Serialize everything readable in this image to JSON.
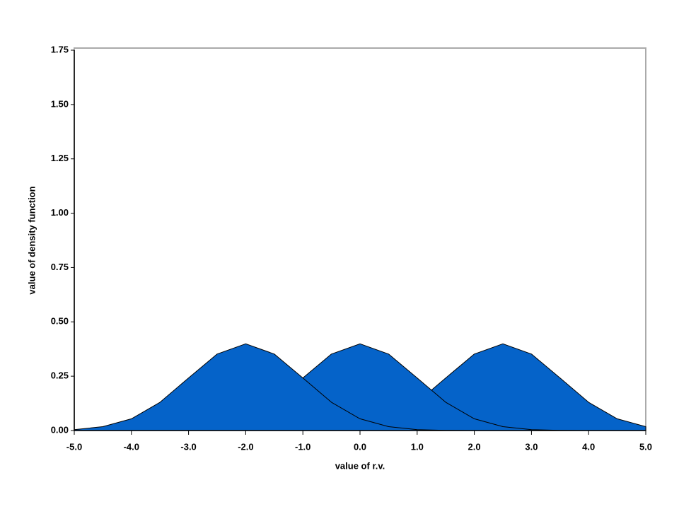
{
  "chart_data": {
    "type": "area",
    "x_label": "value of r.v.",
    "y_label": "value of density function",
    "x": [
      -5,
      -4.5,
      -4,
      -3.5,
      -3,
      -2.5,
      -2,
      -1.5,
      -1,
      -0.5,
      0,
      0.5,
      1,
      1.5,
      2,
      2.5,
      3,
      3.5,
      4,
      4.5,
      5
    ],
    "series": [
      {
        "color": "#0563c9",
        "values": [
          0.004,
          0.018,
          0.054,
          0.13,
          0.242,
          0.352,
          0.399,
          0.352,
          0.242,
          0.13,
          0.054,
          0.018,
          0.004,
          0.001,
          0,
          0,
          0,
          0,
          0,
          0,
          0
        ]
      },
      {
        "color": "#0563c9",
        "values": [
          0,
          0,
          0,
          0.001,
          0.004,
          0.018,
          0.054,
          0.13,
          0.242,
          0.352,
          0.399,
          0.352,
          0.242,
          0.13,
          0.054,
          0.018,
          0.004,
          0.001,
          0,
          0,
          0
        ]
      },
      {
        "color": "#0563c9",
        "values": [
          0,
          0,
          0,
          0,
          0,
          0,
          0,
          0,
          0.001,
          0.004,
          0.018,
          0.054,
          0.13,
          0.242,
          0.352,
          0.399,
          0.352,
          0.242,
          0.13,
          0.054,
          0.018
        ]
      }
    ],
    "xlim": [
      -5,
      5
    ],
    "ylim": [
      0,
      1.75
    ],
    "xticks": [
      {
        "value": -5,
        "label": "-5.0"
      },
      {
        "value": -4,
        "label": "-4.0"
      },
      {
        "value": -3,
        "label": "-3.0"
      },
      {
        "value": -2,
        "label": "-2.0"
      },
      {
        "value": -1,
        "label": "-1.0"
      },
      {
        "value": 0,
        "label": "0.0"
      },
      {
        "value": 1,
        "label": "1.0"
      },
      {
        "value": 2,
        "label": "2.0"
      },
      {
        "value": 3,
        "label": "3.0"
      },
      {
        "value": 4,
        "label": "4.0"
      },
      {
        "value": 5,
        "label": "5.0"
      }
    ],
    "yticks": [
      {
        "value": 0,
        "label": "0.00"
      },
      {
        "value": 0.25,
        "label": "0.25"
      },
      {
        "value": 0.5,
        "label": "0.50"
      },
      {
        "value": 0.75,
        "label": "0.75"
      },
      {
        "value": 1,
        "label": "1.00"
      },
      {
        "value": 1.25,
        "label": "1.25"
      },
      {
        "value": 1.5,
        "label": "1.50"
      },
      {
        "value": 1.75,
        "label": "1.75"
      }
    ]
  }
}
